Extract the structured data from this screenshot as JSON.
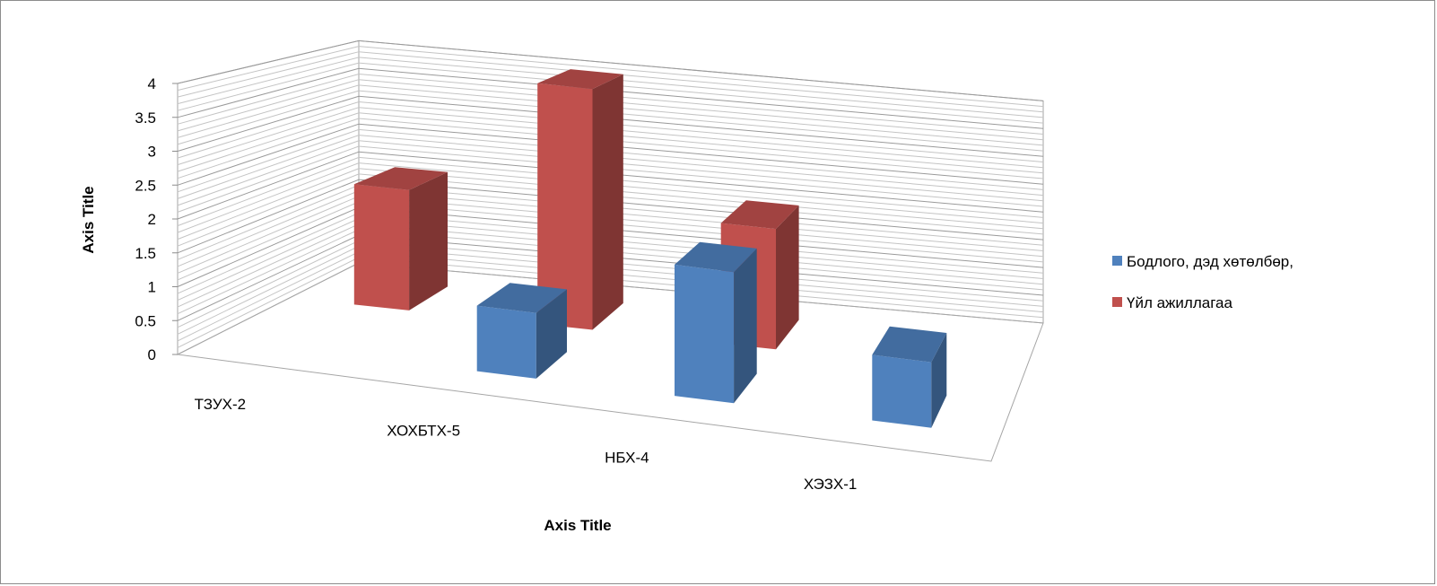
{
  "chart_data": {
    "type": "bar",
    "variant": "3d-column",
    "categories": [
      "ТЗУХ-2",
      "ХОХБТХ-5",
      "НБХ-4",
      "ХЭЗХ-1"
    ],
    "series": [
      {
        "name": "Бодлого, дэд хөтөлбөр,",
        "values": [
          0,
          1,
          2,
          1
        ],
        "color": "#4f81bd"
      },
      {
        "name": "Үйл ажиллагаа",
        "values": [
          2,
          4,
          2,
          0
        ],
        "color": "#c0504d"
      }
    ],
    "xlabel": "Axis Title",
    "ylabel": "Axis Title",
    "ylim": [
      0,
      4
    ],
    "yticks": [
      "0",
      "0.5",
      "1",
      "1.5",
      "2",
      "2.5",
      "3",
      "3.5",
      "4"
    ],
    "grid": true,
    "legend_position": "right"
  }
}
